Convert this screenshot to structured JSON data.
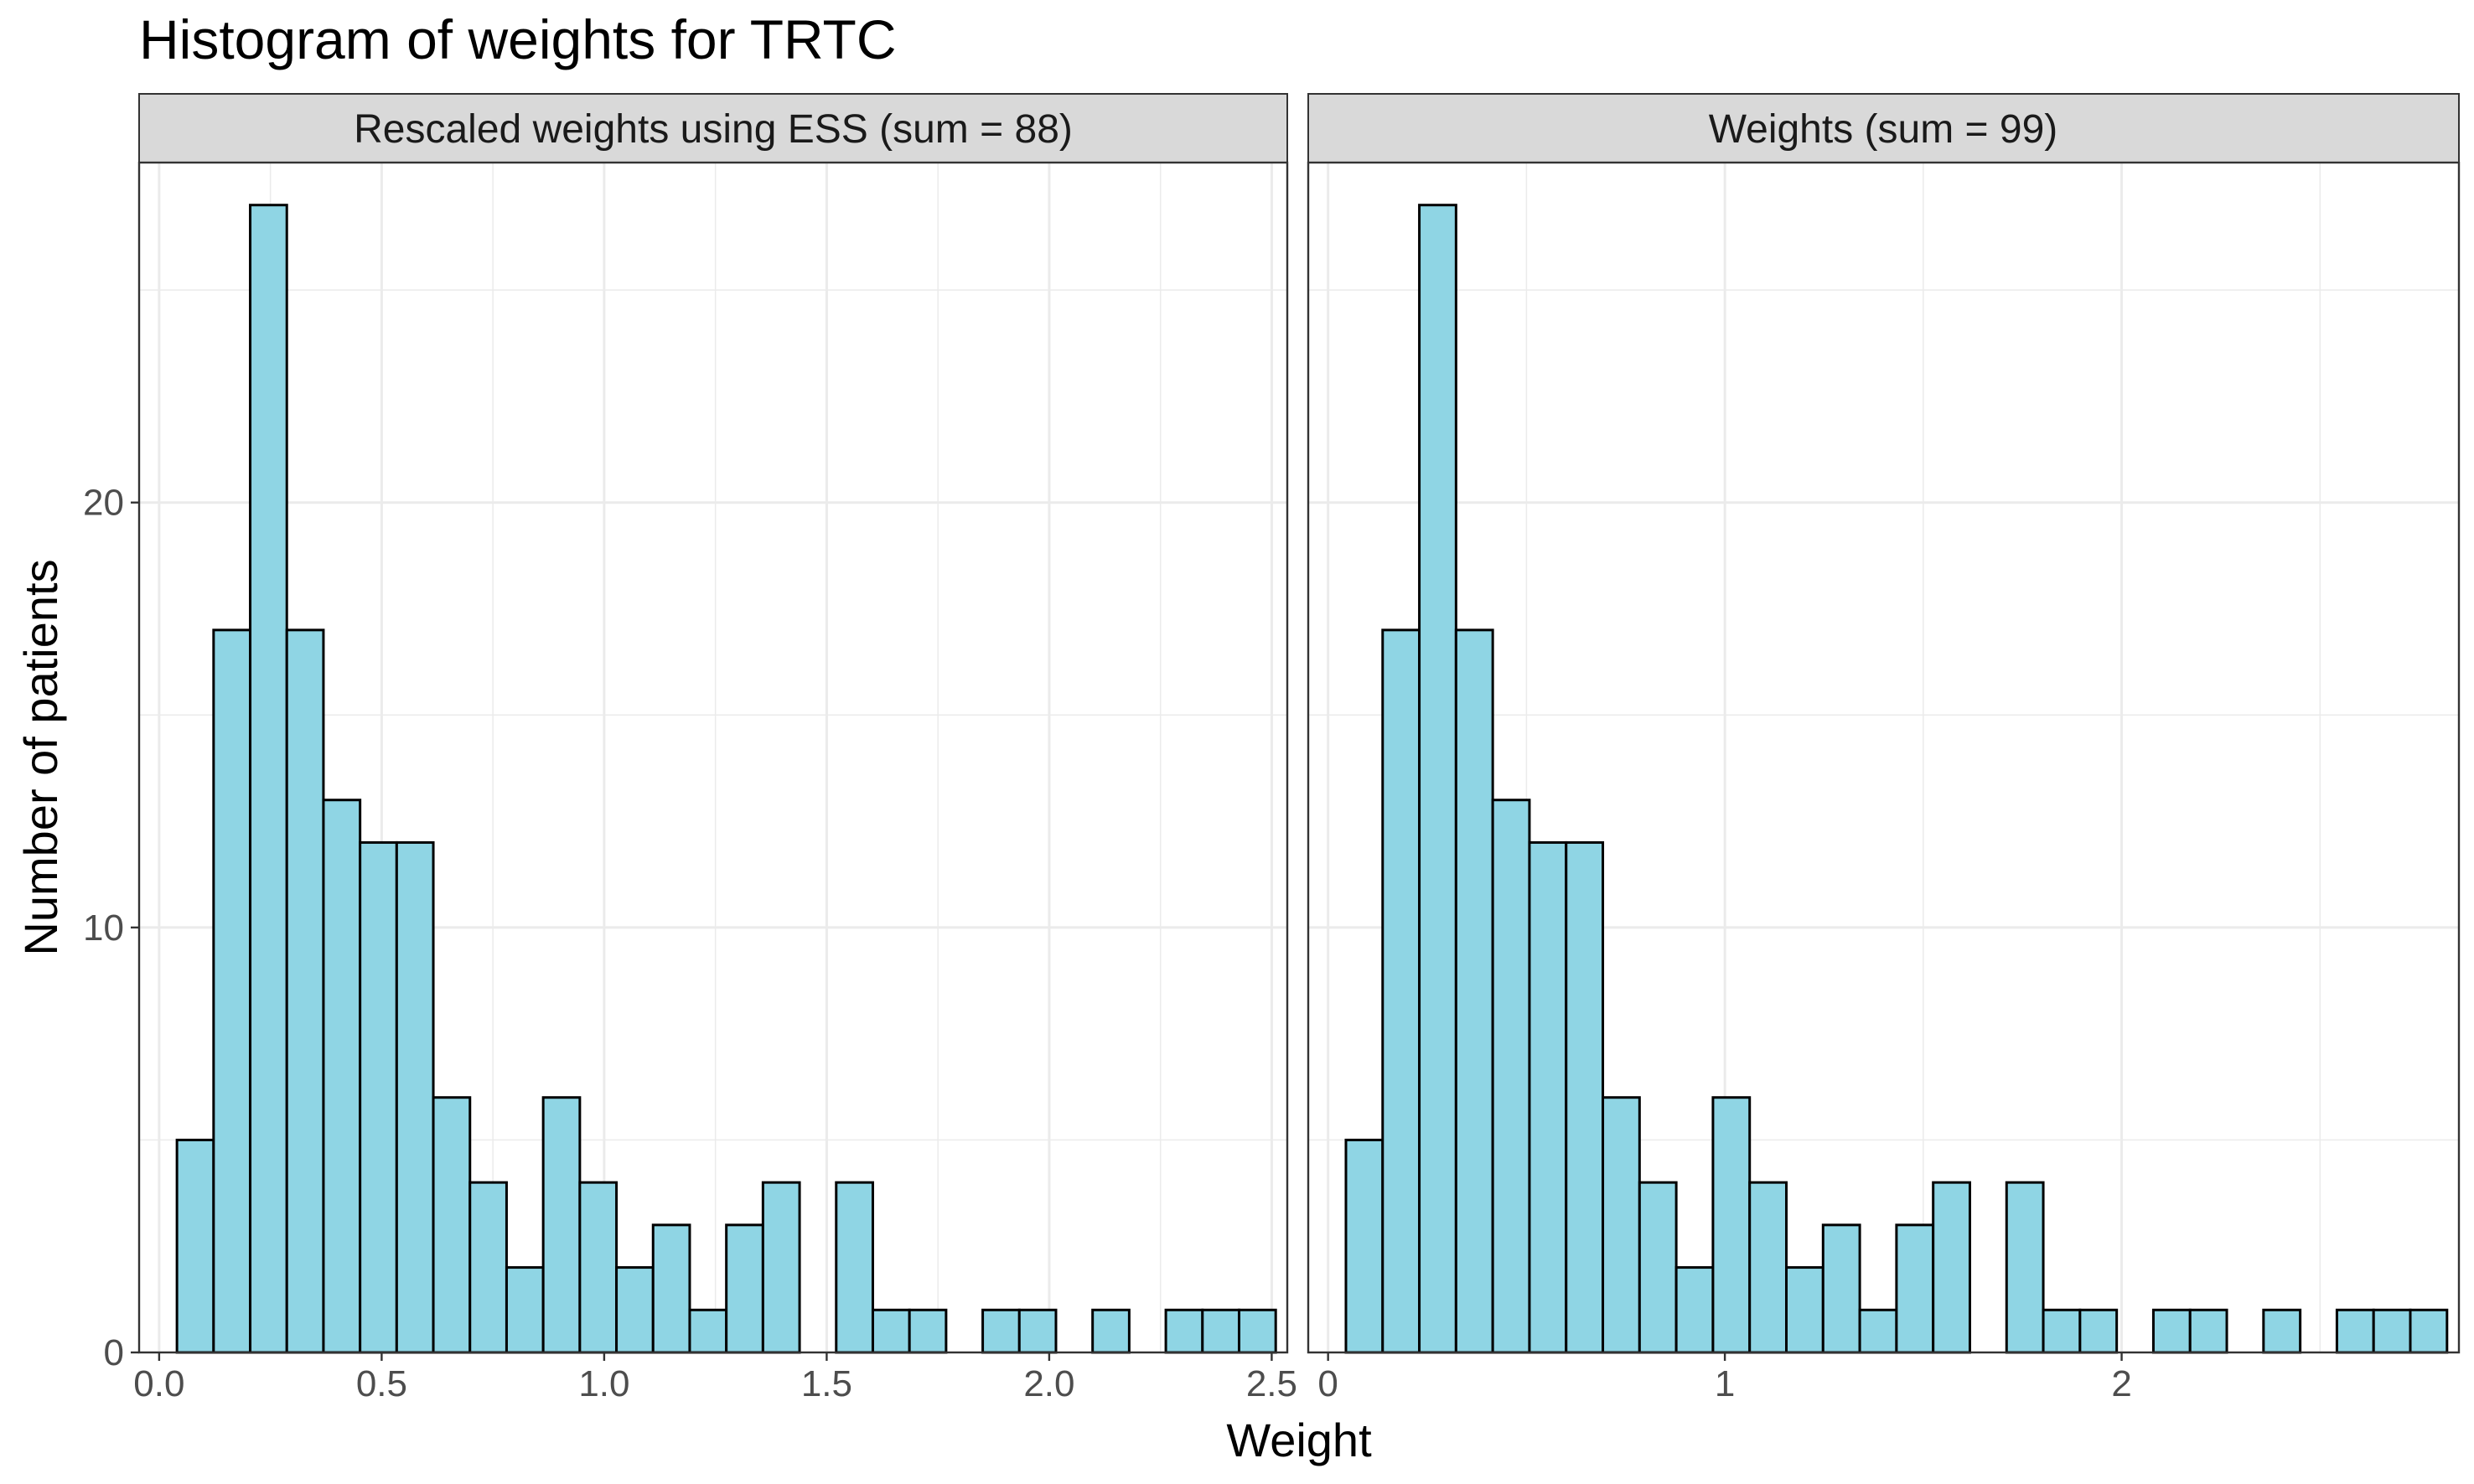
{
  "chart_data": {
    "type": "bar",
    "title": "Histogram of weights for TRTC",
    "xlabel": "Weight",
    "ylabel": "Number of patients",
    "ylim": [
      0,
      28
    ],
    "y_ticks": [
      0,
      10,
      20
    ],
    "grid": true,
    "colors": {
      "fill": "#8FD5E4",
      "outline": "#000000",
      "strip": "#D9D9D9",
      "grid": "#EBEBEB"
    },
    "panels": [
      {
        "strip_label": "Rescaled weights using ESS (sum = 88)",
        "xlim": [
          -0.045,
          2.535
        ],
        "x_ticks": [
          0,
          0.5,
          1,
          1.5,
          2,
          2.5
        ],
        "x_tick_labels": [
          "0.0",
          "0.5",
          "1.0",
          "1.5",
          "2.0",
          "2.5"
        ],
        "bin_start": 0.04,
        "bin_width": 0.0823,
        "counts": [
          5,
          17,
          27,
          17,
          13,
          12,
          12,
          6,
          4,
          2,
          6,
          4,
          2,
          3,
          1,
          3,
          4,
          0,
          4,
          1,
          1,
          0,
          1,
          1,
          0,
          1,
          0,
          1,
          1,
          1
        ]
      },
      {
        "strip_label": "Weights (sum = 99)",
        "xlim": [
          -0.05,
          2.85
        ],
        "x_ticks": [
          0,
          1,
          2
        ],
        "x_tick_labels": [
          "0",
          "1",
          "2"
        ],
        "bin_start": 0.045,
        "bin_width": 0.0925,
        "counts": [
          5,
          17,
          27,
          17,
          13,
          12,
          12,
          6,
          4,
          2,
          6,
          4,
          2,
          3,
          1,
          3,
          4,
          0,
          4,
          1,
          1,
          0,
          1,
          1,
          0,
          1,
          0,
          1,
          1,
          1
        ]
      }
    ]
  }
}
